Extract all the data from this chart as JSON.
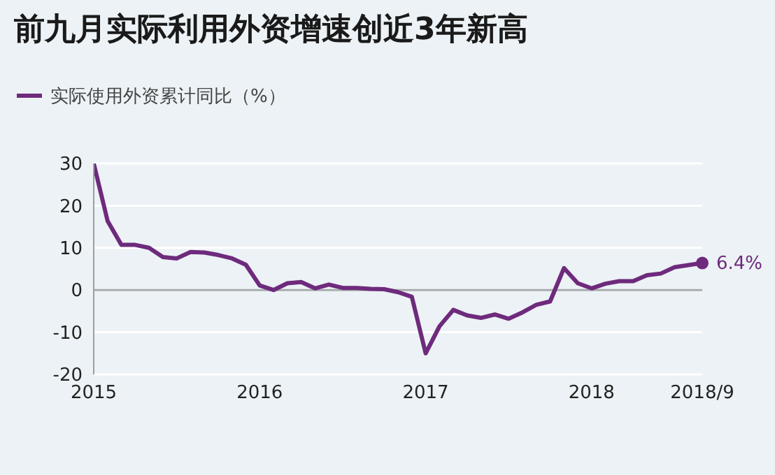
{
  "chart_data": {
    "type": "line",
    "title": "前九月实际利用外资增速创近3年新高",
    "x": [
      "2015-01",
      "2015-02",
      "2015-03",
      "2015-04",
      "2015-05",
      "2015-06",
      "2015-07",
      "2015-08",
      "2015-09",
      "2015-10",
      "2015-11",
      "2015-12",
      "2016-01",
      "2016-02",
      "2016-03",
      "2016-04",
      "2016-05",
      "2016-06",
      "2016-07",
      "2016-08",
      "2016-09",
      "2016-10",
      "2016-11",
      "2016-12",
      "2017-01",
      "2017-02",
      "2017-03",
      "2017-04",
      "2017-05",
      "2017-06",
      "2017-07",
      "2017-08",
      "2017-09",
      "2017-10",
      "2017-11",
      "2017-12",
      "2018-01",
      "2018-02",
      "2018-03",
      "2018-04",
      "2018-05",
      "2018-06",
      "2018-07",
      "2018-08",
      "2018-09"
    ],
    "series": [
      {
        "name": "实际使用外资累计同比（%）",
        "color": "#6e2a7c",
        "values": [
          30,
          16.4,
          10.7,
          10.7,
          10,
          7.8,
          7.5,
          9,
          8.9,
          8.3,
          7.5,
          6,
          1.1,
          0,
          1.6,
          1.9,
          0.4,
          1.3,
          0.5,
          0.5,
          0.3,
          0.2,
          -0.5,
          -1.6,
          -15,
          -8.6,
          -4.7,
          -6,
          -6.6,
          -5.8,
          -6.8,
          -5.3,
          -3.5,
          -2.7,
          5.2,
          1.6,
          0.4,
          1.5,
          2.1,
          2.1,
          3.5,
          3.9,
          5.4,
          5.9,
          6.4
        ],
        "value_labels": [
          null,
          null,
          null,
          null,
          null,
          null,
          null,
          null,
          null,
          null,
          null,
          null,
          null,
          null,
          null,
          null,
          null,
          null,
          null,
          null,
          null,
          null,
          null,
          null,
          null,
          null,
          null,
          null,
          null,
          null,
          null,
          null,
          null,
          null,
          null,
          null,
          null,
          null,
          null,
          null,
          null,
          null,
          null,
          null,
          "6.4%"
        ]
      }
    ],
    "xlim": [
      "2015-01",
      "2018-09"
    ],
    "xticks": [
      {
        "value": "2015-01",
        "label": "2015"
      },
      {
        "value": "2016-01",
        "label": "2016"
      },
      {
        "value": "2017-01",
        "label": "2017"
      },
      {
        "value": "2018-01",
        "label": "2018"
      },
      {
        "value": "2018-09",
        "label": "2018/9"
      }
    ],
    "ylim": [
      -20,
      30
    ],
    "yticks": [
      -20,
      -10,
      0,
      10,
      20,
      30
    ],
    "ref_lines": [
      {
        "axis": "y",
        "value": 0,
        "color": "#a8acae"
      }
    ],
    "grid": "y",
    "legend": "top left"
  }
}
